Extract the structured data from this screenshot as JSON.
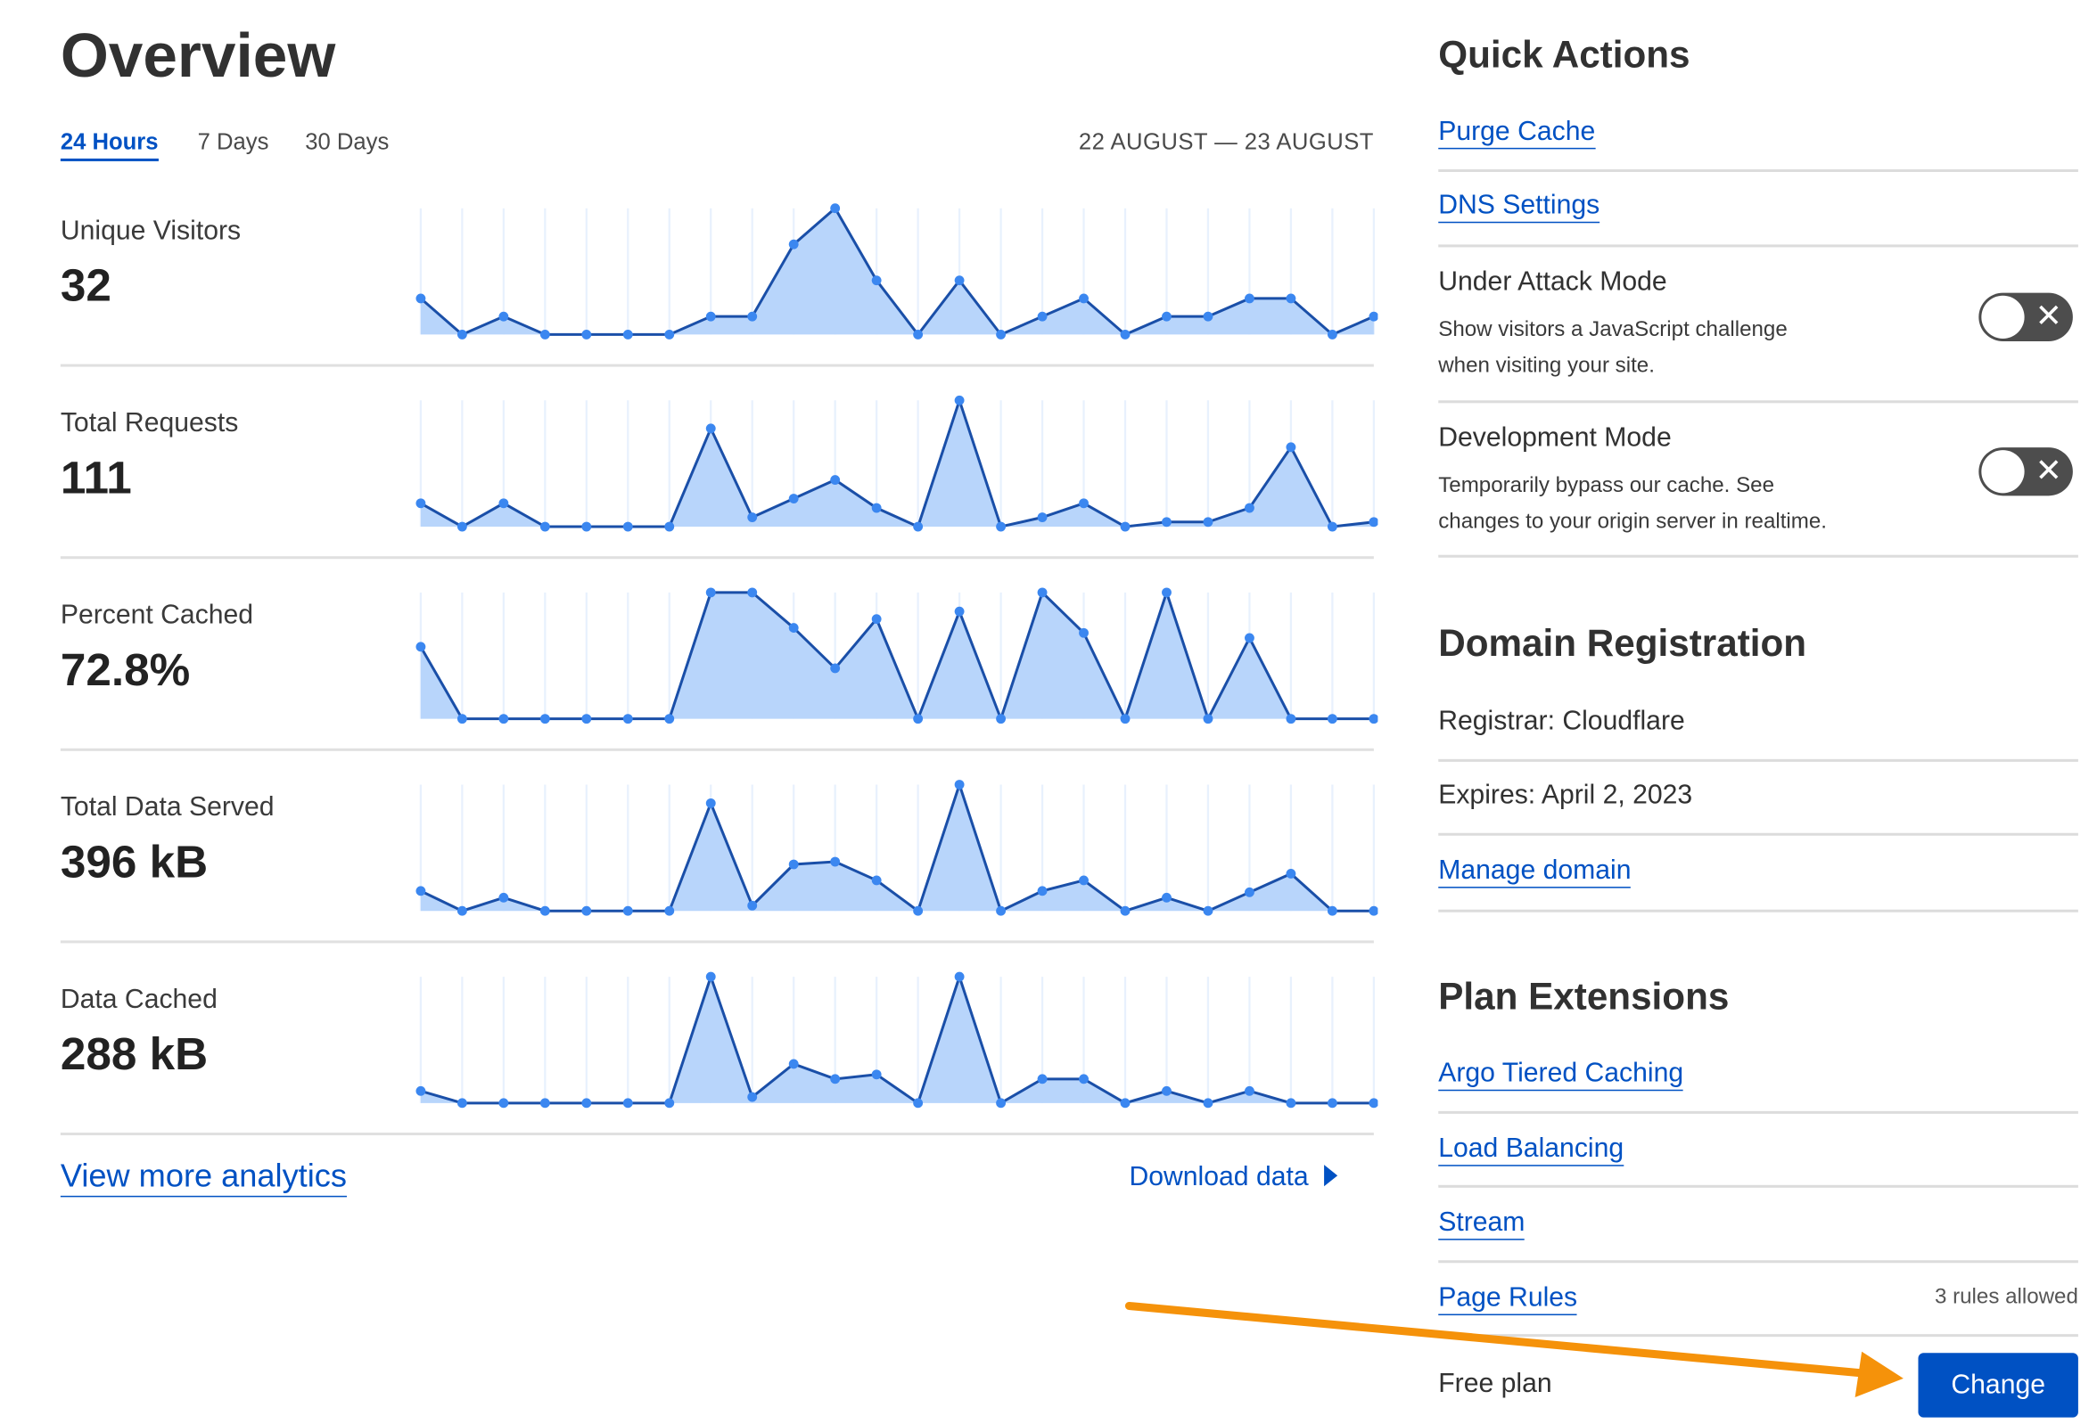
{
  "overview": {
    "title": "Overview",
    "tabs": [
      {
        "label": "24 Hours",
        "active": true
      },
      {
        "label": "7 Days",
        "active": false
      },
      {
        "label": "30 Days",
        "active": false
      }
    ],
    "date_range": "22 AUGUST — 23 AUGUST",
    "view_more": "View more analytics",
    "download": "Download data"
  },
  "colors": {
    "accent": "#0051c3",
    "area_fill": "#b8d5fb",
    "line": "#1a4fa8",
    "point": "#3b87f0",
    "arrow": "#f5920a",
    "toggle_off": "#4d4d4d"
  },
  "chart_data": [
    {
      "type": "area",
      "title": "Unique Visitors",
      "value": "32",
      "x_count": 24,
      "values": [
        2,
        0,
        1,
        0,
        0,
        0,
        0,
        1,
        1,
        5,
        7,
        3,
        0,
        3,
        0,
        1,
        2,
        0,
        1,
        1,
        2,
        2,
        0,
        1
      ]
    },
    {
      "type": "area",
      "title": "Total Requests",
      "value": "111",
      "x_count": 24,
      "values": [
        5,
        0,
        5,
        0,
        0,
        0,
        0,
        21,
        2,
        6,
        10,
        4,
        0,
        27,
        0,
        2,
        5,
        0,
        1,
        1,
        4,
        17,
        0,
        1
      ]
    },
    {
      "type": "area",
      "title": "Percent Cached",
      "value": "72.8%",
      "x_count": 24,
      "values": [
        57,
        0,
        0,
        0,
        0,
        0,
        0,
        100,
        100,
        72,
        40,
        79,
        0,
        85,
        0,
        100,
        68,
        0,
        100,
        0,
        64,
        0,
        0,
        0
      ]
    },
    {
      "type": "area",
      "title": "Total Data Served",
      "value": "396 kB",
      "x_count": 24,
      "values": [
        15,
        0,
        10,
        0,
        0,
        0,
        0,
        81,
        4,
        35,
        37,
        23,
        0,
        95,
        0,
        15,
        23,
        0,
        10,
        0,
        14,
        28,
        0,
        0
      ]
    },
    {
      "type": "area",
      "title": "Data Cached",
      "value": "288 kB",
      "x_count": 24,
      "values": [
        8,
        0,
        0,
        0,
        0,
        0,
        0,
        84,
        4,
        26,
        16,
        19,
        0,
        84,
        0,
        16,
        16,
        0,
        8,
        0,
        8,
        0,
        0,
        0
      ]
    }
  ],
  "quick_actions": {
    "title": "Quick Actions",
    "purge": "Purge Cache",
    "dns": "DNS Settings",
    "under_attack": {
      "title": "Under Attack Mode",
      "desc1": "Show visitors a JavaScript challenge",
      "desc2": "when visiting your site.",
      "enabled": false,
      "toggle_glyph": "✕"
    },
    "dev_mode": {
      "title": "Development Mode",
      "desc1": "Temporarily bypass our cache. See",
      "desc2": "changes to your origin server in realtime.",
      "enabled": false,
      "toggle_glyph": "✕"
    }
  },
  "domain": {
    "title": "Domain Registration",
    "registrar": "Registrar: Cloudflare",
    "expires": "Expires: April 2, 2023",
    "manage": "Manage domain"
  },
  "plan": {
    "title": "Plan Extensions",
    "argo": "Argo Tiered Caching",
    "lb": "Load Balancing",
    "stream": "Stream",
    "page_rules": "Page Rules",
    "rules_allowed": "3 rules allowed",
    "current": "Free plan",
    "change": "Change"
  }
}
